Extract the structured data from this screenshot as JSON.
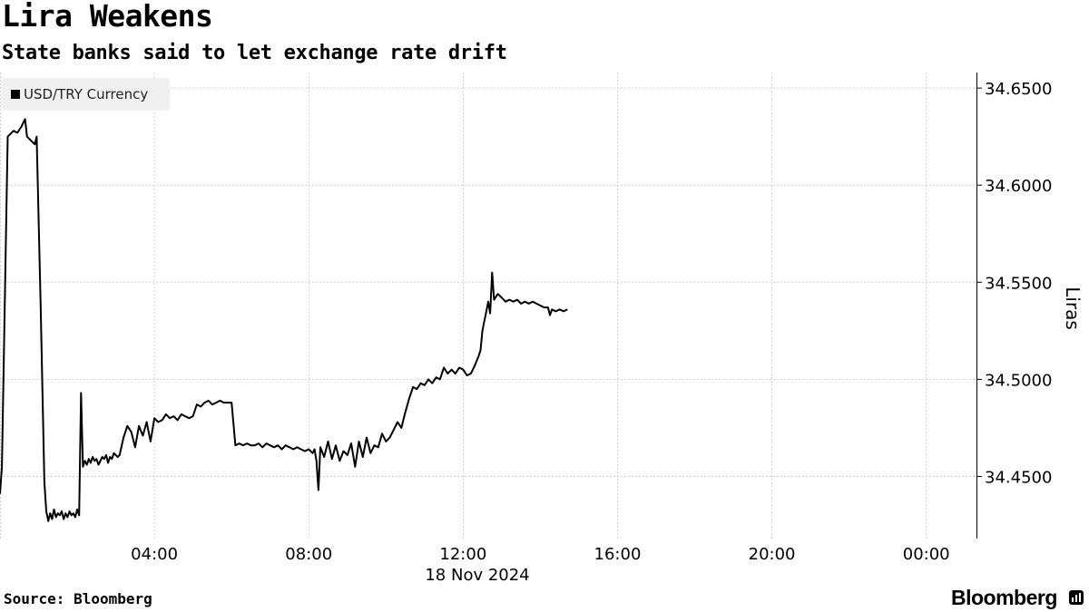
{
  "title": "Lira Weakens",
  "subtitle": "State banks said to let exchange rate drift",
  "source": "Source: Bloomberg",
  "brand": "Bloomberg",
  "chart_data": {
    "type": "line",
    "title": "Lira Weakens",
    "subtitle": "State banks said to let exchange rate drift",
    "xlabel": "18 Nov 2024",
    "ylabel": "Liras",
    "x_unit": "hour of day, 18 Nov 2024",
    "xlim": [
      0.0,
      25.3
    ],
    "ylim": [
      34.418,
      34.658
    ],
    "x_ticks": [
      4,
      8,
      12,
      16,
      20,
      24
    ],
    "x_tick_labels": [
      "04:00",
      "08:00",
      "12:00",
      "16:00",
      "20:00",
      "00:00"
    ],
    "y_ticks": [
      34.45,
      34.5,
      34.55,
      34.6,
      34.65
    ],
    "y_tick_labels": [
      "34.4500",
      "34.5000",
      "34.5500",
      "34.6000",
      "34.6500"
    ],
    "grid": true,
    "legend_position": "top-left",
    "line_color": "#000000",
    "series": [
      {
        "name": "USD/TRY Currency",
        "x": [
          0.0,
          0.05,
          0.2,
          0.35,
          0.45,
          0.55,
          0.65,
          0.7,
          0.9,
          0.95,
          1.05,
          1.15,
          1.2,
          1.25,
          1.3,
          1.35,
          1.4,
          1.45,
          1.5,
          1.55,
          1.6,
          1.65,
          1.7,
          1.75,
          1.8,
          1.85,
          1.9,
          1.95,
          2.0,
          2.05,
          2.1,
          2.15,
          2.2,
          2.25,
          2.3,
          2.35,
          2.4,
          2.45,
          2.5,
          2.55,
          2.6,
          2.65,
          2.7,
          2.75,
          2.8,
          2.85,
          2.9,
          2.95,
          3.0,
          3.05,
          3.1,
          3.2,
          3.3,
          3.4,
          3.5,
          3.6,
          3.7,
          3.8,
          3.9,
          4.0,
          4.1,
          4.2,
          4.3,
          4.4,
          4.5,
          4.6,
          4.7,
          4.8,
          4.9,
          5.0,
          5.1,
          5.2,
          5.3,
          5.4,
          5.5,
          5.6,
          5.7,
          5.8,
          5.9,
          6.0,
          6.1,
          6.2,
          6.3,
          6.4,
          6.5,
          6.6,
          6.7,
          6.8,
          6.9,
          7.0,
          7.1,
          7.2,
          7.3,
          7.4,
          7.5,
          7.6,
          7.7,
          7.8,
          7.9,
          8.0,
          8.1,
          8.15,
          8.2,
          8.25,
          8.3,
          8.4,
          8.5,
          8.6,
          8.7,
          8.8,
          8.9,
          9.0,
          9.1,
          9.2,
          9.3,
          9.4,
          9.5,
          9.6,
          9.7,
          9.8,
          9.9,
          10.0,
          10.1,
          10.2,
          10.3,
          10.4,
          10.5,
          10.6,
          10.7,
          10.8,
          10.9,
          11.0,
          11.1,
          11.2,
          11.3,
          11.4,
          11.5,
          11.6,
          11.7,
          11.8,
          11.9,
          12.0,
          12.1,
          12.2,
          12.3,
          12.4,
          12.45,
          12.5,
          12.55,
          12.6,
          12.65,
          12.7,
          12.75,
          12.8,
          12.9,
          13.0,
          13.1,
          13.2,
          13.3,
          13.4,
          13.5,
          13.6,
          13.7,
          13.8,
          13.9,
          14.0,
          14.1,
          14.2,
          14.25,
          14.3,
          14.4,
          14.5,
          14.6,
          14.7
        ],
        "values": [
          34.441,
          34.455,
          34.625,
          34.628,
          34.627,
          34.63,
          34.634,
          34.625,
          34.621,
          34.625,
          34.54,
          34.447,
          34.432,
          34.427,
          34.431,
          34.428,
          34.433,
          34.429,
          34.431,
          34.43,
          34.432,
          34.428,
          34.431,
          34.429,
          34.432,
          34.43,
          34.431,
          34.429,
          34.433,
          34.43,
          34.493,
          34.455,
          34.458,
          34.456,
          34.459,
          34.457,
          34.46,
          34.458,
          34.459,
          34.456,
          34.458,
          34.46,
          34.459,
          34.461,
          34.457,
          34.46,
          34.459,
          34.462,
          34.461,
          34.46,
          34.461,
          34.47,
          34.476,
          34.473,
          34.465,
          34.476,
          34.471,
          34.478,
          34.468,
          34.48,
          34.478,
          34.479,
          34.482,
          34.48,
          34.481,
          34.479,
          34.482,
          34.481,
          34.48,
          34.481,
          34.487,
          34.486,
          34.488,
          34.489,
          34.487,
          34.488,
          34.489,
          34.488,
          34.488,
          34.488,
          34.466,
          34.467,
          34.466,
          34.467,
          34.466,
          34.466,
          34.467,
          34.465,
          34.467,
          34.466,
          34.465,
          34.466,
          34.464,
          34.466,
          34.465,
          34.464,
          34.465,
          34.464,
          34.463,
          34.464,
          34.462,
          34.464,
          34.458,
          34.443,
          34.465,
          34.46,
          34.468,
          34.459,
          34.466,
          34.458,
          34.463,
          34.461,
          34.467,
          34.455,
          34.468,
          34.46,
          34.47,
          34.462,
          34.466,
          34.465,
          34.472,
          34.468,
          34.47,
          34.474,
          34.478,
          34.475,
          34.483,
          34.49,
          34.496,
          34.495,
          34.498,
          34.497,
          34.5,
          34.498,
          34.501,
          34.5,
          34.506,
          34.503,
          34.505,
          34.503,
          34.506,
          34.505,
          34.502,
          34.503,
          34.507,
          34.512,
          34.515,
          34.525,
          34.53,
          34.535,
          34.54,
          34.534,
          34.555,
          34.541,
          34.544,
          34.542,
          34.54,
          34.541,
          34.54,
          34.541,
          34.539,
          34.54,
          34.539,
          34.54,
          34.539,
          34.538,
          34.537,
          34.537,
          34.533,
          34.536,
          34.535,
          34.536,
          34.535,
          34.536
        ]
      }
    ]
  }
}
